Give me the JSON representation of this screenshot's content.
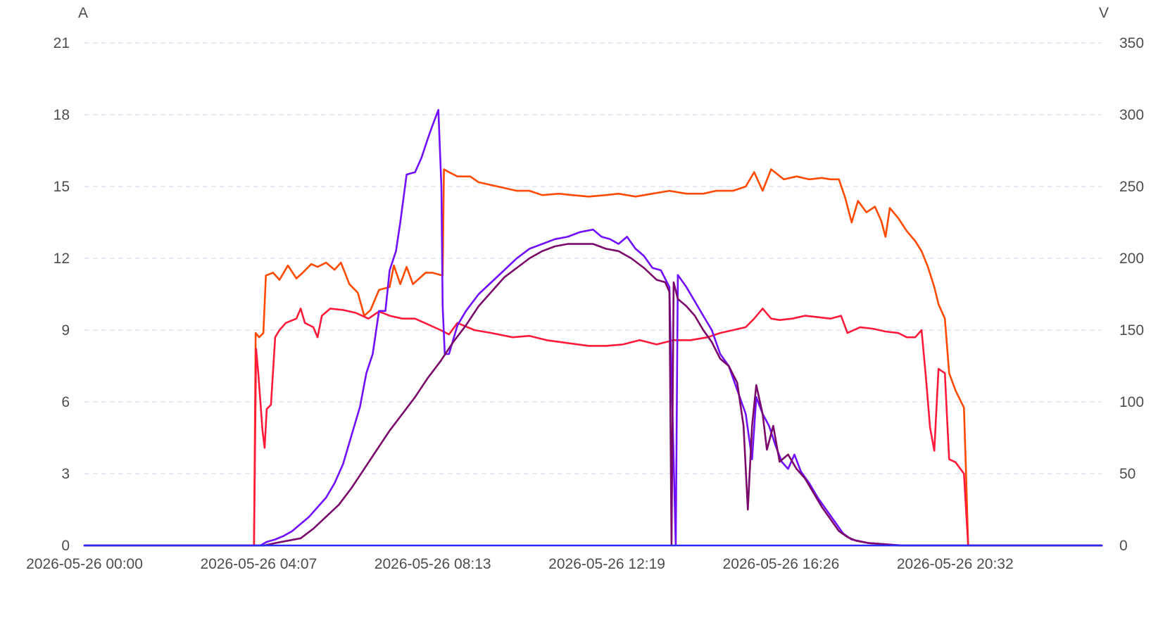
{
  "chart_data": {
    "type": "line",
    "left_axis": {
      "unit": "A",
      "ticks": [
        "0",
        "3",
        "6",
        "9",
        "12",
        "15",
        "18",
        "21"
      ],
      "range": [
        0,
        21
      ]
    },
    "right_axis": {
      "unit": "V",
      "ticks": [
        "0",
        "50",
        "100",
        "150",
        "200",
        "250",
        "300",
        "350"
      ],
      "range": [
        0,
        350
      ]
    },
    "x_ticks": [
      "2026-05-26 00:00",
      "2026-05-26 04:07",
      "2026-05-26 08:13",
      "2026-05-26 12:19",
      "2026-05-26 16:26",
      "2026-05-26 20:32"
    ],
    "x_range_hours": [
      0,
      24
    ],
    "grid": true,
    "legend": "none",
    "series": [
      {
        "axis": "right",
        "color": "#ff4a00",
        "points": [
          [
            0,
            0
          ],
          [
            4.0,
            0
          ],
          [
            4.04,
            148
          ],
          [
            4.12,
            145
          ],
          [
            4.22,
            148
          ],
          [
            4.28,
            188
          ],
          [
            4.45,
            190
          ],
          [
            4.6,
            185
          ],
          [
            4.8,
            195
          ],
          [
            5.0,
            186
          ],
          [
            5.15,
            190
          ],
          [
            5.35,
            196
          ],
          [
            5.5,
            194
          ],
          [
            5.7,
            197
          ],
          [
            5.9,
            192
          ],
          [
            6.05,
            197
          ],
          [
            6.25,
            182
          ],
          [
            6.45,
            176
          ],
          [
            6.6,
            160
          ],
          [
            6.75,
            164
          ],
          [
            6.95,
            178
          ],
          [
            7.2,
            180
          ],
          [
            7.3,
            195
          ],
          [
            7.45,
            182
          ],
          [
            7.6,
            194
          ],
          [
            7.75,
            182
          ],
          [
            7.9,
            186
          ],
          [
            8.05,
            190
          ],
          [
            8.2,
            190
          ],
          [
            8.45,
            188
          ],
          [
            8.48,
            262
          ],
          [
            8.6,
            260
          ],
          [
            8.8,
            257
          ],
          [
            9.1,
            257
          ],
          [
            9.3,
            253
          ],
          [
            9.6,
            251
          ],
          [
            9.9,
            249
          ],
          [
            10.2,
            247
          ],
          [
            10.5,
            247
          ],
          [
            10.8,
            244
          ],
          [
            11.2,
            245
          ],
          [
            11.5,
            244
          ],
          [
            11.9,
            243
          ],
          [
            12.3,
            244
          ],
          [
            12.6,
            245
          ],
          [
            13.0,
            243
          ],
          [
            13.4,
            245
          ],
          [
            13.8,
            247
          ],
          [
            14.2,
            245
          ],
          [
            14.6,
            245
          ],
          [
            14.9,
            247
          ],
          [
            15.3,
            247
          ],
          [
            15.6,
            250
          ],
          [
            15.8,
            260
          ],
          [
            16.0,
            247
          ],
          [
            16.2,
            262
          ],
          [
            16.5,
            255
          ],
          [
            16.8,
            257
          ],
          [
            17.1,
            255
          ],
          [
            17.4,
            256
          ],
          [
            17.6,
            255
          ],
          [
            17.8,
            255
          ],
          [
            17.95,
            242
          ],
          [
            18.1,
            225
          ],
          [
            18.25,
            240
          ],
          [
            18.45,
            232
          ],
          [
            18.65,
            236
          ],
          [
            18.8,
            226
          ],
          [
            18.9,
            215
          ],
          [
            19.0,
            235
          ],
          [
            19.2,
            228
          ],
          [
            19.4,
            219
          ],
          [
            19.6,
            212
          ],
          [
            19.75,
            205
          ],
          [
            19.9,
            194
          ],
          [
            20.05,
            180
          ],
          [
            20.15,
            168
          ],
          [
            20.3,
            158
          ],
          [
            20.4,
            120
          ],
          [
            20.55,
            108
          ],
          [
            20.75,
            96
          ],
          [
            20.8,
            50
          ],
          [
            20.85,
            0
          ],
          [
            24,
            0
          ]
        ]
      },
      {
        "axis": "right",
        "color": "#ff1a3c",
        "points": [
          [
            0,
            0
          ],
          [
            4.0,
            0
          ],
          [
            4.05,
            137
          ],
          [
            4.1,
            120
          ],
          [
            4.2,
            80
          ],
          [
            4.25,
            68
          ],
          [
            4.3,
            95
          ],
          [
            4.4,
            98
          ],
          [
            4.5,
            145
          ],
          [
            4.6,
            150
          ],
          [
            4.75,
            155
          ],
          [
            5.0,
            158
          ],
          [
            5.1,
            165
          ],
          [
            5.2,
            155
          ],
          [
            5.4,
            152
          ],
          [
            5.5,
            145
          ],
          [
            5.6,
            160
          ],
          [
            5.8,
            165
          ],
          [
            6.1,
            164
          ],
          [
            6.4,
            162
          ],
          [
            6.7,
            158
          ],
          [
            6.95,
            163
          ],
          [
            7.2,
            160
          ],
          [
            7.5,
            158
          ],
          [
            7.8,
            158
          ],
          [
            8.1,
            154
          ],
          [
            8.4,
            150
          ],
          [
            8.6,
            147
          ],
          [
            8.8,
            155
          ],
          [
            9.2,
            150
          ],
          [
            9.6,
            148
          ],
          [
            10.1,
            145
          ],
          [
            10.5,
            146
          ],
          [
            10.9,
            143
          ],
          [
            11.4,
            141
          ],
          [
            11.9,
            139
          ],
          [
            12.3,
            139
          ],
          [
            12.7,
            140
          ],
          [
            13.1,
            143
          ],
          [
            13.5,
            140
          ],
          [
            13.9,
            143
          ],
          [
            14.3,
            143
          ],
          [
            14.7,
            145
          ],
          [
            15.0,
            148
          ],
          [
            15.3,
            150
          ],
          [
            15.6,
            152
          ],
          [
            15.8,
            158
          ],
          [
            16.0,
            165
          ],
          [
            16.2,
            158
          ],
          [
            16.4,
            157
          ],
          [
            16.7,
            158
          ],
          [
            17.0,
            160
          ],
          [
            17.3,
            159
          ],
          [
            17.6,
            158
          ],
          [
            17.85,
            160
          ],
          [
            18.0,
            148
          ],
          [
            18.3,
            152
          ],
          [
            18.6,
            151
          ],
          [
            18.9,
            149
          ],
          [
            19.2,
            148
          ],
          [
            19.4,
            145
          ],
          [
            19.6,
            145
          ],
          [
            19.75,
            150
          ],
          [
            19.85,
            118
          ],
          [
            19.95,
            82
          ],
          [
            20.05,
            66
          ],
          [
            20.1,
            95
          ],
          [
            20.15,
            123
          ],
          [
            20.3,
            120
          ],
          [
            20.35,
            90
          ],
          [
            20.4,
            60
          ],
          [
            20.55,
            58
          ],
          [
            20.75,
            50
          ],
          [
            20.85,
            0
          ],
          [
            24,
            0
          ]
        ]
      },
      {
        "axis": "left",
        "color": "#7010ff",
        "points": [
          [
            0,
            0
          ],
          [
            4.15,
            0
          ],
          [
            4.3,
            0.15
          ],
          [
            4.5,
            0.25
          ],
          [
            4.7,
            0.4
          ],
          [
            4.9,
            0.6
          ],
          [
            5.1,
            0.9
          ],
          [
            5.3,
            1.2
          ],
          [
            5.5,
            1.6
          ],
          [
            5.7,
            2.0
          ],
          [
            5.9,
            2.6
          ],
          [
            6.1,
            3.4
          ],
          [
            6.3,
            4.6
          ],
          [
            6.5,
            5.8
          ],
          [
            6.65,
            7.2
          ],
          [
            6.8,
            8.0
          ],
          [
            6.95,
            9.8
          ],
          [
            7.1,
            9.8
          ],
          [
            7.2,
            11.5
          ],
          [
            7.35,
            12.3
          ],
          [
            7.45,
            13.5
          ],
          [
            7.6,
            15.5
          ],
          [
            7.8,
            15.6
          ],
          [
            7.95,
            16.2
          ],
          [
            8.1,
            17.0
          ],
          [
            8.2,
            17.5
          ],
          [
            8.35,
            18.2
          ],
          [
            8.42,
            15.0
          ],
          [
            8.45,
            10.0
          ],
          [
            8.5,
            8.0
          ],
          [
            8.6,
            8.0
          ],
          [
            8.8,
            9.2
          ],
          [
            9.0,
            9.8
          ],
          [
            9.3,
            10.5
          ],
          [
            9.6,
            11.0
          ],
          [
            9.9,
            11.5
          ],
          [
            10.2,
            12.0
          ],
          [
            10.5,
            12.4
          ],
          [
            10.8,
            12.6
          ],
          [
            11.1,
            12.8
          ],
          [
            11.4,
            12.9
          ],
          [
            11.7,
            13.1
          ],
          [
            12.0,
            13.2
          ],
          [
            12.2,
            12.9
          ],
          [
            12.4,
            12.8
          ],
          [
            12.6,
            12.6
          ],
          [
            12.8,
            12.9
          ],
          [
            13.0,
            12.4
          ],
          [
            13.2,
            12.1
          ],
          [
            13.4,
            11.6
          ],
          [
            13.6,
            11.5
          ],
          [
            13.8,
            10.8
          ],
          [
            13.95,
            0
          ],
          [
            14.0,
            11.3
          ],
          [
            14.2,
            10.8
          ],
          [
            14.4,
            10.2
          ],
          [
            14.6,
            9.6
          ],
          [
            14.8,
            9.0
          ],
          [
            15.0,
            8.0
          ],
          [
            15.2,
            7.5
          ],
          [
            15.4,
            6.5
          ],
          [
            15.6,
            5.5
          ],
          [
            15.75,
            3.6
          ],
          [
            15.85,
            6.2
          ],
          [
            16.0,
            5.5
          ],
          [
            16.15,
            5.0
          ],
          [
            16.3,
            4.2
          ],
          [
            16.45,
            3.5
          ],
          [
            16.6,
            3.2
          ],
          [
            16.75,
            3.8
          ],
          [
            16.9,
            3.1
          ],
          [
            17.1,
            2.6
          ],
          [
            17.3,
            2.0
          ],
          [
            17.5,
            1.5
          ],
          [
            17.7,
            1.0
          ],
          [
            17.9,
            0.5
          ],
          [
            18.1,
            0.25
          ],
          [
            18.5,
            0.1
          ],
          [
            18.9,
            0.05
          ],
          [
            19.3,
            0
          ],
          [
            24,
            0
          ]
        ]
      },
      {
        "axis": "left",
        "color": "#7a0a6a",
        "points": [
          [
            0,
            0
          ],
          [
            4.25,
            0
          ],
          [
            4.5,
            0.1
          ],
          [
            4.8,
            0.2
          ],
          [
            5.1,
            0.3
          ],
          [
            5.4,
            0.7
          ],
          [
            5.7,
            1.2
          ],
          [
            6.0,
            1.7
          ],
          [
            6.3,
            2.4
          ],
          [
            6.6,
            3.2
          ],
          [
            6.9,
            4.0
          ],
          [
            7.2,
            4.8
          ],
          [
            7.5,
            5.5
          ],
          [
            7.8,
            6.2
          ],
          [
            8.1,
            7.0
          ],
          [
            8.4,
            7.7
          ],
          [
            8.7,
            8.5
          ],
          [
            9.0,
            9.2
          ],
          [
            9.3,
            10.0
          ],
          [
            9.6,
            10.6
          ],
          [
            9.9,
            11.2
          ],
          [
            10.2,
            11.6
          ],
          [
            10.5,
            12.0
          ],
          [
            10.8,
            12.3
          ],
          [
            11.1,
            12.5
          ],
          [
            11.4,
            12.6
          ],
          [
            11.7,
            12.6
          ],
          [
            12.0,
            12.6
          ],
          [
            12.3,
            12.4
          ],
          [
            12.6,
            12.3
          ],
          [
            12.9,
            12.0
          ],
          [
            13.2,
            11.6
          ],
          [
            13.5,
            11.1
          ],
          [
            13.7,
            11.0
          ],
          [
            13.8,
            10.6
          ],
          [
            13.85,
            0
          ],
          [
            13.9,
            11.0
          ],
          [
            14.0,
            10.3
          ],
          [
            14.2,
            10.0
          ],
          [
            14.4,
            9.6
          ],
          [
            14.6,
            9.0
          ],
          [
            14.8,
            8.5
          ],
          [
            15.0,
            7.8
          ],
          [
            15.2,
            7.5
          ],
          [
            15.4,
            6.8
          ],
          [
            15.55,
            5.0
          ],
          [
            15.65,
            1.5
          ],
          [
            15.75,
            5.0
          ],
          [
            15.85,
            6.7
          ],
          [
            16.0,
            5.5
          ],
          [
            16.1,
            4.0
          ],
          [
            16.25,
            5.0
          ],
          [
            16.4,
            3.5
          ],
          [
            16.6,
            3.8
          ],
          [
            16.8,
            3.2
          ],
          [
            17.0,
            2.8
          ],
          [
            17.2,
            2.2
          ],
          [
            17.4,
            1.6
          ],
          [
            17.6,
            1.1
          ],
          [
            17.8,
            0.6
          ],
          [
            18.0,
            0.35
          ],
          [
            18.2,
            0.2
          ],
          [
            18.5,
            0.1
          ],
          [
            18.9,
            0.05
          ],
          [
            19.2,
            0
          ],
          [
            24,
            0
          ]
        ]
      },
      {
        "axis": "left",
        "color": "#2c2cff",
        "points": [
          [
            0,
            0
          ],
          [
            24,
            0
          ]
        ]
      }
    ]
  }
}
